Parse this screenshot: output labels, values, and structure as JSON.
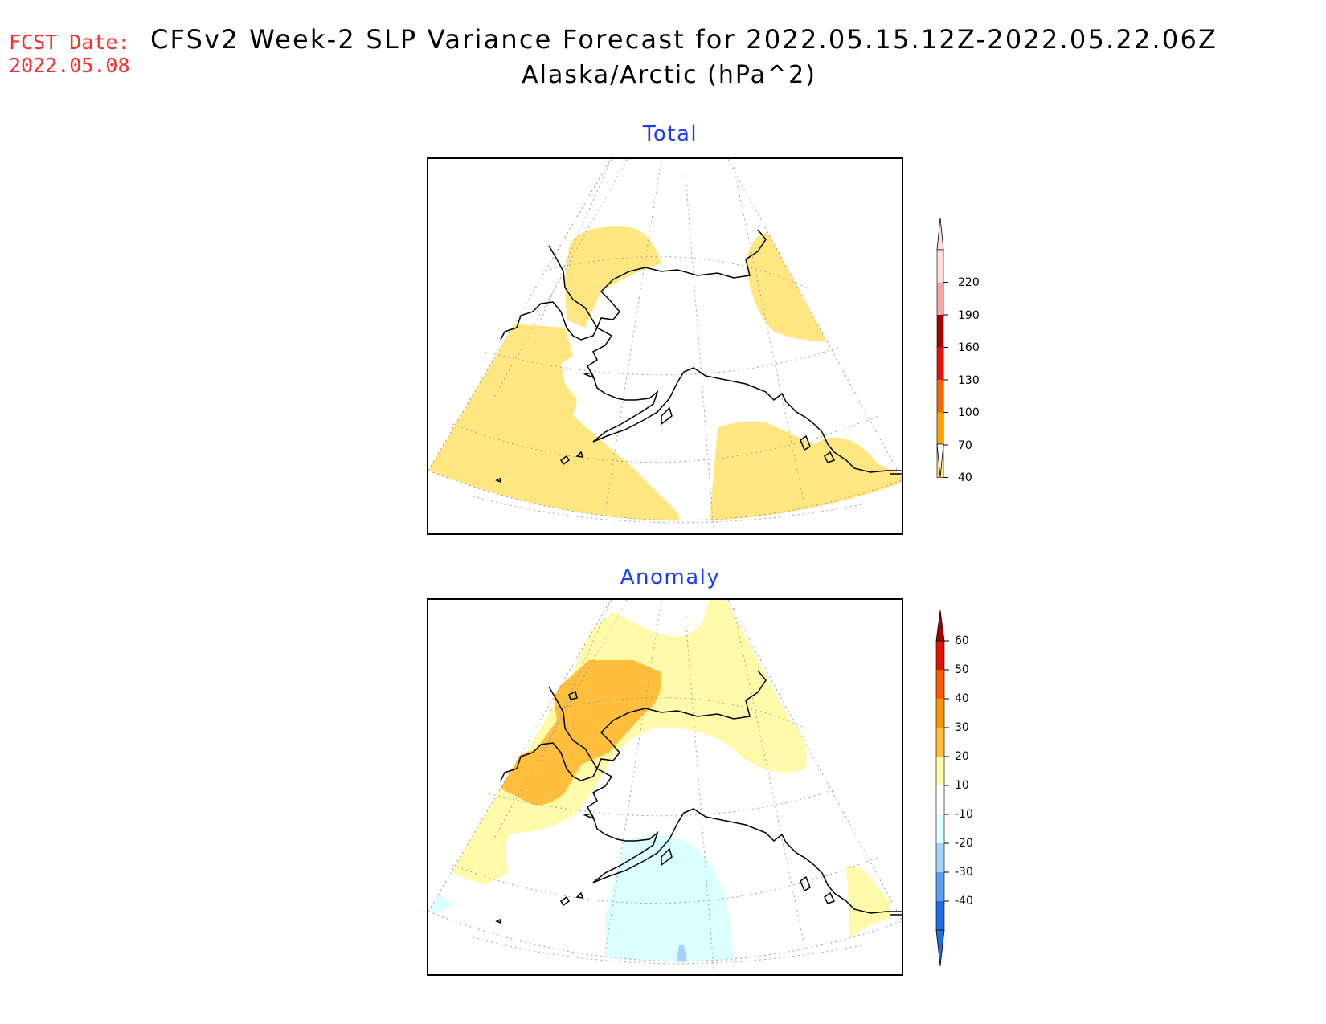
{
  "header": {
    "fcst_label": "FCST Date:",
    "fcst_date": "2022.05.08",
    "title_line1": "CFSv2 Week-2 SLP Variance Forecast for 2022.05.15.12Z-2022.05.22.06Z",
    "title_line2": "Alaska/Arctic (hPa^2)"
  },
  "panels": {
    "total": {
      "title": "Total"
    },
    "anomaly": {
      "title": "Anomaly"
    }
  },
  "colorbars": {
    "total": {
      "labels": [
        "40",
        "70",
        "100",
        "130",
        "160",
        "190",
        "220"
      ],
      "colors": [
        "#ffe680",
        "#ffa400",
        "#ff6400",
        "#ee1100",
        "#a50000",
        "#f7a6a6",
        "#ffdcdc"
      ],
      "upper_triangle_color": "#ffdcdc",
      "lower_triangle_color": "#ffffff"
    },
    "anomaly": {
      "labels": [
        "-40",
        "-30",
        "-20",
        "-10",
        "10",
        "20",
        "30",
        "40",
        "50",
        "60"
      ],
      "colors": [
        "#1e6ee6",
        "#5aa0f0",
        "#a6d2f8",
        "#dcffff",
        "#ffffff",
        "#fffaaa",
        "#ffbe3c",
        "#ff9600",
        "#ff5a00",
        "#e11400"
      ],
      "lower_triangle_color": "#1e6ee6",
      "upper_triangle_color": "#a50000"
    }
  }
}
